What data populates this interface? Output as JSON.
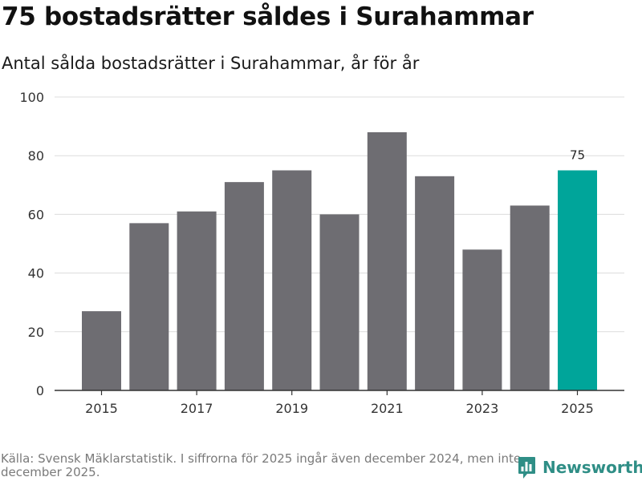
{
  "title": "75 bostadsrätter såldes i Surahammar",
  "subtitle": "Antal sålda bostadsrätter i Surahammar, år för år",
  "footer": {
    "source": "Källa: Svensk Mäklarstatistik. I siffrorna för 2025 ingår även december 2024, men inte december 2025."
  },
  "logo": {
    "text": "Newsworthy"
  },
  "colors": {
    "bar": "#6e6d72",
    "highlight": "#00a59a",
    "grid": "#dcdcdc",
    "axis": "#333333",
    "logo": "#2f8e86"
  },
  "chart_data": {
    "type": "bar",
    "title": "75 bostadsrätter såldes i Surahammar",
    "subtitle": "Antal sålda bostadsrätter i Surahammar, år för år",
    "xlabel": "",
    "ylabel": "",
    "categories": [
      2015,
      2016,
      2017,
      2018,
      2019,
      2020,
      2021,
      2022,
      2023,
      2024,
      2025
    ],
    "values": [
      27,
      57,
      61,
      71,
      75,
      60,
      88,
      73,
      48,
      63,
      75
    ],
    "ylim": [
      0,
      100
    ],
    "yticks": [
      0,
      20,
      40,
      60,
      80,
      100
    ],
    "xticks": [
      2015,
      2017,
      2019,
      2021,
      2023,
      2025
    ],
    "highlight_index": 10,
    "data_labels": [
      {
        "index": 10,
        "text": "75"
      }
    ],
    "grid": true
  }
}
